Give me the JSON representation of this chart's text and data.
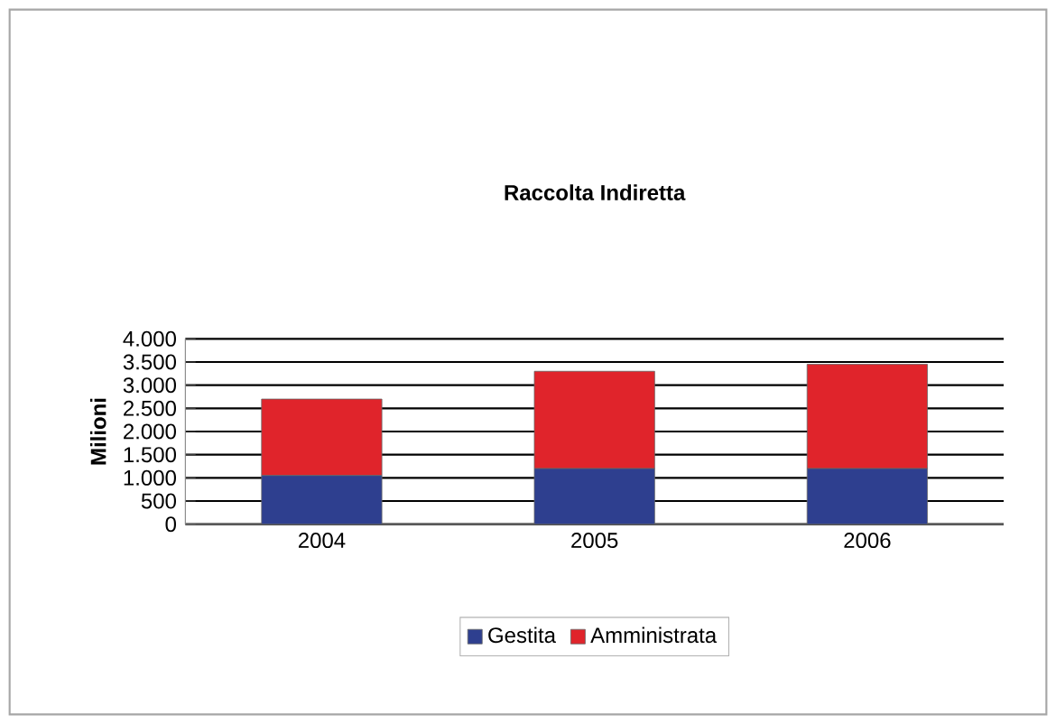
{
  "chart_data": {
    "type": "bar",
    "stacked": true,
    "title": "Raccolta Indiretta",
    "ylabel": "Milioni",
    "categories": [
      "2004",
      "2005",
      "2006"
    ],
    "series": [
      {
        "name": "Gestita",
        "color": "#2e3f8f",
        "values": [
          1050,
          1200,
          1200
        ]
      },
      {
        "name": "Amministrata",
        "color": "#e0242b",
        "values": [
          1650,
          2100,
          2250
        ]
      }
    ],
    "ylim": [
      0,
      4000
    ],
    "yticks": [
      0,
      {
        "value": 500,
        "label": "500"
      },
      {
        "value": 1000,
        "label": "1.000"
      },
      {
        "value": 1500,
        "label": "1.500"
      },
      {
        "value": 2000,
        "label": "2.000"
      },
      {
        "value": 2500,
        "label": "2.500"
      },
      {
        "value": 3000,
        "label": "3.000"
      },
      {
        "value": 3500,
        "label": "3.500"
      },
      {
        "value": 4000,
        "label": "4.000"
      }
    ],
    "grid": "y",
    "legend": "bottom"
  }
}
